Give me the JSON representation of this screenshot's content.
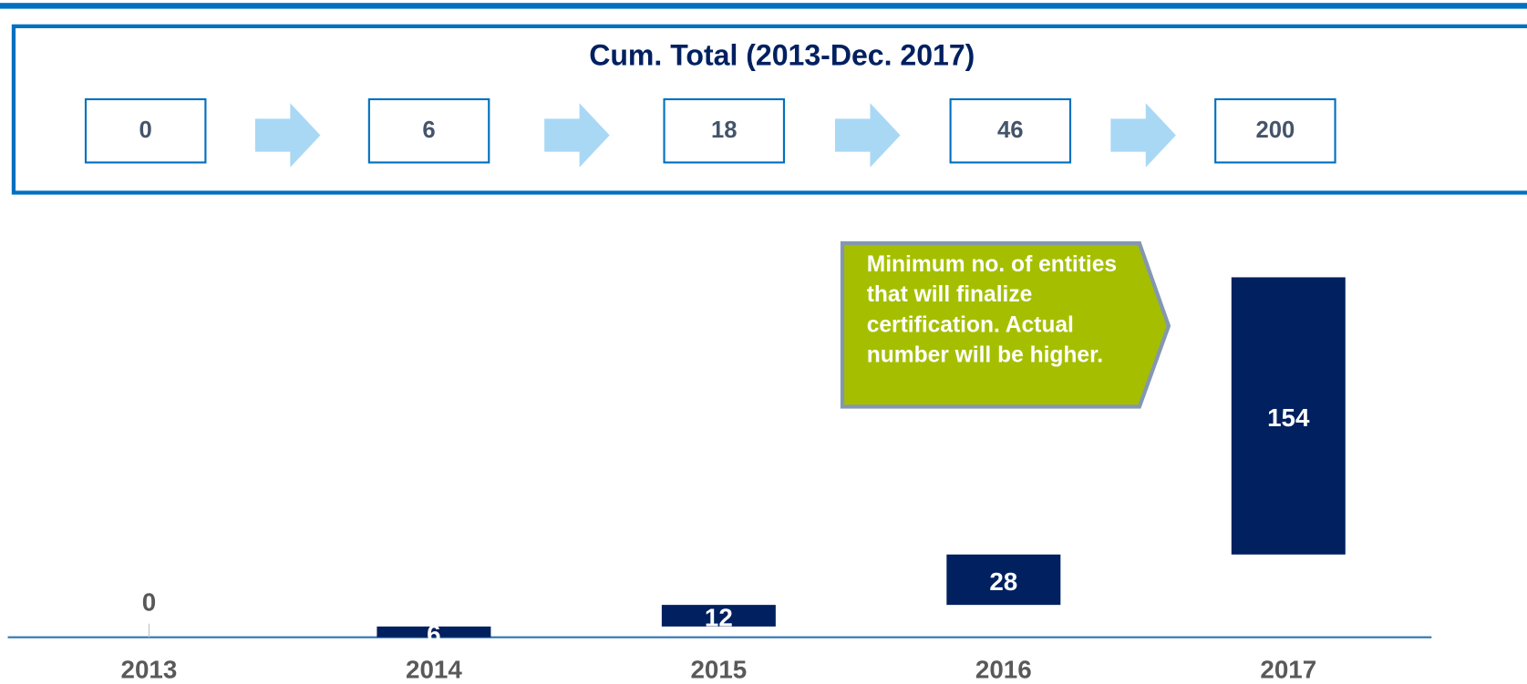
{
  "chart_data": {
    "type": "waterfall",
    "categories": [
      "2013",
      "2014",
      "2015",
      "2016",
      "2017"
    ],
    "values": [
      0,
      6,
      12,
      28,
      154
    ],
    "color": "#002060",
    "ylim": [
      0,
      200
    ],
    "cumulative": {
      "title": "Cum. Total (2013-Dec. 2017)",
      "values": [
        0,
        6,
        18,
        46,
        200
      ]
    },
    "annotation": "Minimum no. of entities that will finalize certification. Actual number will be higher."
  }
}
